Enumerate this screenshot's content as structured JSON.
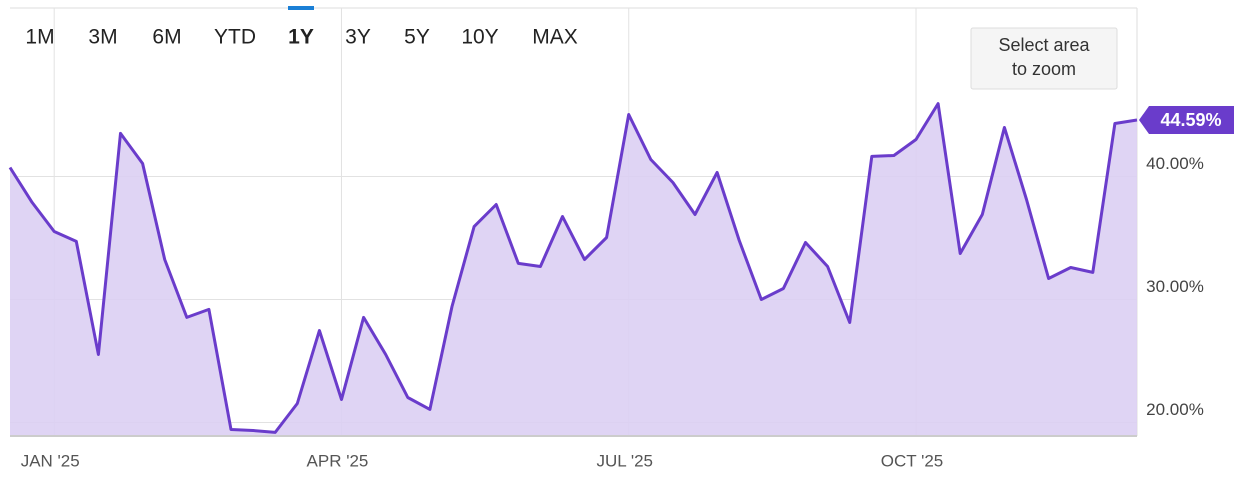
{
  "chart_data": {
    "type": "area",
    "range_buttons": [
      "1M",
      "3M",
      "6M",
      "YTD",
      "1Y",
      "3Y",
      "5Y",
      "10Y",
      "MAX"
    ],
    "active_range_index": 4,
    "disabled_range_indices": [
      7,
      8
    ],
    "zoom_hint": [
      "Select area",
      "to zoom"
    ],
    "categories": [
      null,
      null,
      "JAN '25",
      null,
      null,
      null,
      null,
      null,
      null,
      null,
      null,
      null,
      null,
      null,
      null,
      "APR '25",
      null,
      null,
      null,
      null,
      null,
      null,
      null,
      null,
      null,
      null,
      null,
      null,
      "JUL '25",
      null,
      null,
      null,
      null,
      null,
      null,
      null,
      null,
      null,
      null,
      null,
      null,
      "OCT '25",
      null,
      null,
      null,
      null,
      null,
      null,
      null,
      null,
      null,
      null
    ],
    "values": [
      40.73,
      37.89,
      35.53,
      34.72,
      25.53,
      43.5,
      41.06,
      33.25,
      28.54,
      29.19,
      19.43,
      19.35,
      19.19,
      21.54,
      27.48,
      21.87,
      28.54,
      25.53,
      22.03,
      21.06,
      29.43,
      35.93,
      37.72,
      32.93,
      32.68,
      36.75,
      33.25,
      35.04,
      45.04,
      41.38,
      39.51,
      36.91,
      40.33,
      34.8,
      30.0,
      30.89,
      34.63,
      32.68,
      28.13,
      41.63,
      41.71,
      43.01,
      45.93,
      33.74,
      36.91,
      43.98,
      38.13,
      31.71,
      32.6,
      32.2,
      44.31,
      44.59
    ],
    "value_labels": [
      null,
      null,
      null,
      null,
      null,
      null,
      null,
      null,
      null,
      null,
      null,
      null,
      null,
      null,
      null,
      null,
      null,
      null,
      null,
      null,
      null,
      null,
      null,
      null,
      null,
      null,
      null,
      null,
      null,
      null,
      null,
      null,
      null,
      null,
      null,
      null,
      null,
      null,
      null,
      null,
      null,
      null,
      null,
      null,
      null,
      null,
      null,
      null,
      null,
      null,
      null,
      "44.59%"
    ],
    "color": "#6a3ccb",
    "fill_color": "#dccff3",
    "ylim": [
      18.9,
      53.7
    ],
    "yticks": [
      {
        "value": 20,
        "label": "20.00%"
      },
      {
        "value": 30,
        "label": "30.00%"
      },
      {
        "value": 40,
        "label": "40.00%"
      }
    ],
    "grid": true
  }
}
